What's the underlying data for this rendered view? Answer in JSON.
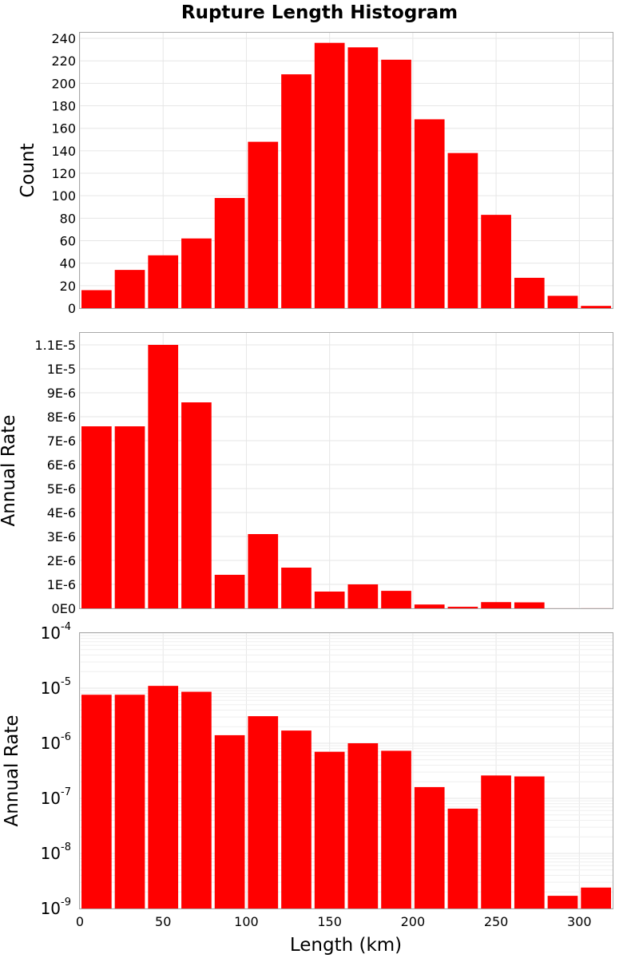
{
  "chart_data": {
    "type": "bar",
    "title": "Rupture Length Histogram",
    "xlabel": "Length (km)",
    "xlim": [
      0,
      320
    ],
    "x_ticks": [
      "0",
      "50",
      "100",
      "150",
      "200",
      "250",
      "300"
    ],
    "bin_width": 20,
    "bin_centers": [
      10,
      30,
      50,
      70,
      90,
      110,
      130,
      150,
      170,
      190,
      210,
      230,
      250,
      270,
      290,
      310
    ],
    "bar_color": "#ff0000",
    "grid": true,
    "panels": [
      {
        "ylabel": "Count",
        "scale": "linear",
        "ylim": [
          0,
          245
        ],
        "y_ticks": [
          "0",
          "20",
          "40",
          "60",
          "80",
          "100",
          "120",
          "140",
          "160",
          "180",
          "200",
          "220",
          "240"
        ],
        "y_tick_values": [
          0,
          20,
          40,
          60,
          80,
          100,
          120,
          140,
          160,
          180,
          200,
          220,
          240
        ],
        "values": [
          16,
          34,
          47,
          62,
          98,
          148,
          208,
          236,
          232,
          221,
          168,
          138,
          83,
          27,
          11,
          2
        ]
      },
      {
        "ylabel": "Annual Rate",
        "scale": "linear",
        "ylim": [
          0,
          1.15e-05
        ],
        "y_ticks": [
          "0E0",
          "1E-6",
          "2E-6",
          "3E-6",
          "4E-6",
          "5E-6",
          "6E-6",
          "7E-6",
          "8E-6",
          "9E-6",
          "1E-5",
          "1.1E-5"
        ],
        "y_tick_values": [
          0,
          1e-06,
          2e-06,
          3e-06,
          4e-06,
          5e-06,
          6e-06,
          7e-06,
          8e-06,
          9e-06,
          1e-05,
          1.1e-05
        ],
        "values": [
          7.6e-06,
          7.6e-06,
          1.1e-05,
          8.6e-06,
          1.4e-06,
          3.1e-06,
          1.7e-06,
          7e-07,
          1e-06,
          7.3e-07,
          1.6e-07,
          6.5e-08,
          2.6e-07,
          2.5e-07,
          1.7e-09,
          2.4e-09
        ]
      },
      {
        "ylabel": "Annual Rate",
        "scale": "log",
        "ylim": [
          1e-09,
          0.0001
        ],
        "y_tick_exponents": [
          "-4",
          "-5",
          "-6",
          "-7",
          "-8",
          "-9"
        ],
        "y_tick_base": "10",
        "values": [
          7.6e-06,
          7.6e-06,
          1.1e-05,
          8.6e-06,
          1.4e-06,
          3.1e-06,
          1.7e-06,
          7e-07,
          1e-06,
          7.3e-07,
          1.6e-07,
          6.5e-08,
          2.6e-07,
          2.5e-07,
          1.7e-09,
          2.4e-09
        ]
      }
    ]
  }
}
